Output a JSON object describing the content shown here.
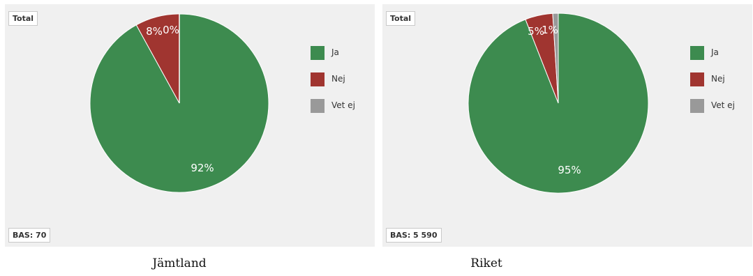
{
  "chart_data": [
    {
      "type": "pie",
      "title": "Jämtland",
      "badge": "Total",
      "base_label": "BAS: 70",
      "categories": [
        "Ja",
        "Nej",
        "Vet ej"
      ],
      "values": [
        92,
        8,
        0
      ],
      "value_labels": [
        "92%",
        "8%",
        "0%"
      ],
      "colors": [
        "#3d8b4f",
        "#a03530",
        "#999999"
      ],
      "legend": "right"
    },
    {
      "type": "pie",
      "title": "Riket",
      "badge": "Total",
      "base_label": "BAS: 5 590",
      "categories": [
        "Ja",
        "Nej",
        "Vet ej"
      ],
      "values": [
        95,
        5,
        1
      ],
      "value_labels": [
        "95%",
        "5%",
        "1%"
      ],
      "colors": [
        "#3d8b4f",
        "#a03530",
        "#999999"
      ],
      "legend": "right"
    }
  ]
}
